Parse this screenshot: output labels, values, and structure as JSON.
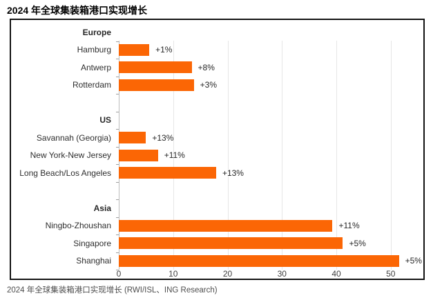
{
  "page": {
    "title": "2024 年全球集装箱港口实现增长",
    "footer": "2024 年全球集装箱港口实现增长 (RWI/ISL、ING Research)"
  },
  "chart_data": {
    "type": "bar",
    "orientation": "horizontal",
    "title": "2024 年全球集装箱港口实现增长",
    "source_note": "2024 年全球集装箱港口实现增长 (RWI/ISL、ING Research)",
    "xlim": [
      0,
      56
    ],
    "xticks": [
      0,
      10,
      20,
      30,
      40,
      50
    ],
    "grid": "vertical-light",
    "legend": "none",
    "bar_color": "#FB6605",
    "groups": [
      {
        "label": "Europe",
        "bars": [
          {
            "label": "Hamburg",
            "value": 5.6,
            "annotation": "+1%"
          },
          {
            "label": "Antwerp",
            "value": 13.4,
            "annotation": "+8%"
          },
          {
            "label": "Rotterdam",
            "value": 13.8,
            "annotation": "+3%"
          }
        ]
      },
      {
        "label": "US",
        "bars": [
          {
            "label": "Savannah (Georgia)",
            "value": 5.0,
            "annotation": "+13%"
          },
          {
            "label": "New York-New Jersey",
            "value": 7.2,
            "annotation": "+11%"
          },
          {
            "label": "Long Beach/Los Angeles",
            "value": 17.9,
            "annotation": "+13%"
          }
        ]
      },
      {
        "label": "Asia",
        "bars": [
          {
            "label": "Ningbo-Zhoushan",
            "value": 39.3,
            "annotation": "+11%"
          },
          {
            "label": "Singapore",
            "value": 41.2,
            "annotation": "+5%"
          },
          {
            "label": "Shanghai",
            "value": 51.5,
            "annotation": "+5%"
          }
        ]
      }
    ]
  }
}
